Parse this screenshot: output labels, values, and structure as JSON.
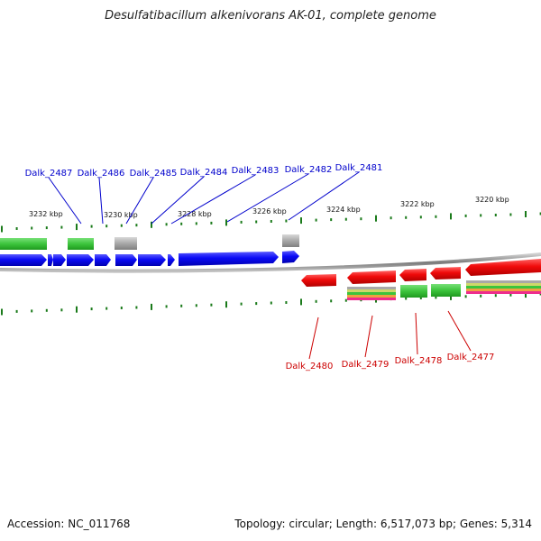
{
  "title": "Desulfatibacillum alkenivorans AK-01, complete genome",
  "footer": {
    "accession": "Accession: NC_011768",
    "summary": "Topology: circular; Length: 6,517,073 bp; Genes: 5,314"
  },
  "colors": {
    "forward_gene": "#0a0af5",
    "reverse_gene": "#f00a0a",
    "forward_label": "#0000cc",
    "reverse_label": "#cc0000",
    "backbone": "#888888",
    "tick": "#1a7a1a",
    "cds_green": "#3cc43c",
    "cds_gray": "#a8a8a8"
  },
  "scale_labels": [
    "3232 kbp",
    "3230 kbp",
    "3228 kbp",
    "3226 kbp",
    "3224 kbp",
    "3222 kbp",
    "3220 kbp"
  ],
  "forward_genes": [
    "Dalk_2487",
    "Dalk_2486",
    "Dalk_2485",
    "Dalk_2484",
    "Dalk_2483",
    "Dalk_2482",
    "Dalk_2481"
  ],
  "reverse_genes": [
    "Dalk_2480",
    "Dalk_2479",
    "Dalk_2478",
    "Dalk_2477"
  ]
}
